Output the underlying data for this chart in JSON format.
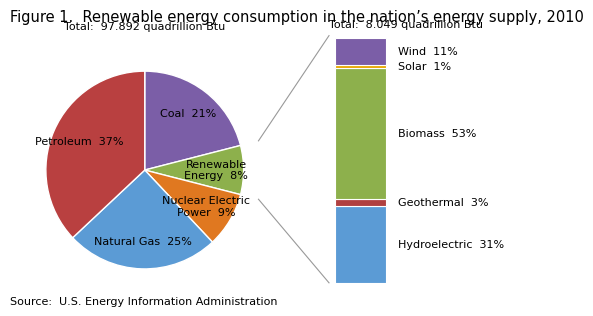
{
  "title": "Figure 1.  Renewable energy consumption in the nation’s energy supply, 2010",
  "pie_total_label": "Total:  97.892 quadrillion Btu",
  "bar_total_label": "Total:  8.049 quadrillion Btu",
  "source_label": "Source:  U.S. Energy Information Administration",
  "pie_labels": [
    "Coal  21%",
    "Renewable\nEnergy  8%",
    "Nuclear Electric\nPower  9%",
    "Natural Gas  25%",
    "Petroleum  37%"
  ],
  "pie_sizes": [
    21,
    8,
    9,
    25,
    37
  ],
  "pie_colors": [
    "#7B5EA7",
    "#8DB04C",
    "#E07820",
    "#5B9BD5",
    "#B94040"
  ],
  "bar_values": [
    31,
    3,
    53,
    1,
    11
  ],
  "bar_colors": [
    "#5B9BD5",
    "#B04040",
    "#8DB04C",
    "#E8A800",
    "#7B5EA7"
  ],
  "bar_labels_right": [
    "Hydroelectric  31%",
    "Geothermal  3%",
    "Biomass  53%",
    "Solar  1%",
    "Wind  11%"
  ],
  "background_color": "#FFFFFF",
  "title_fontsize": 10.5,
  "label_fontsize": 8,
  "annotation_fontsize": 8,
  "source_fontsize": 8
}
